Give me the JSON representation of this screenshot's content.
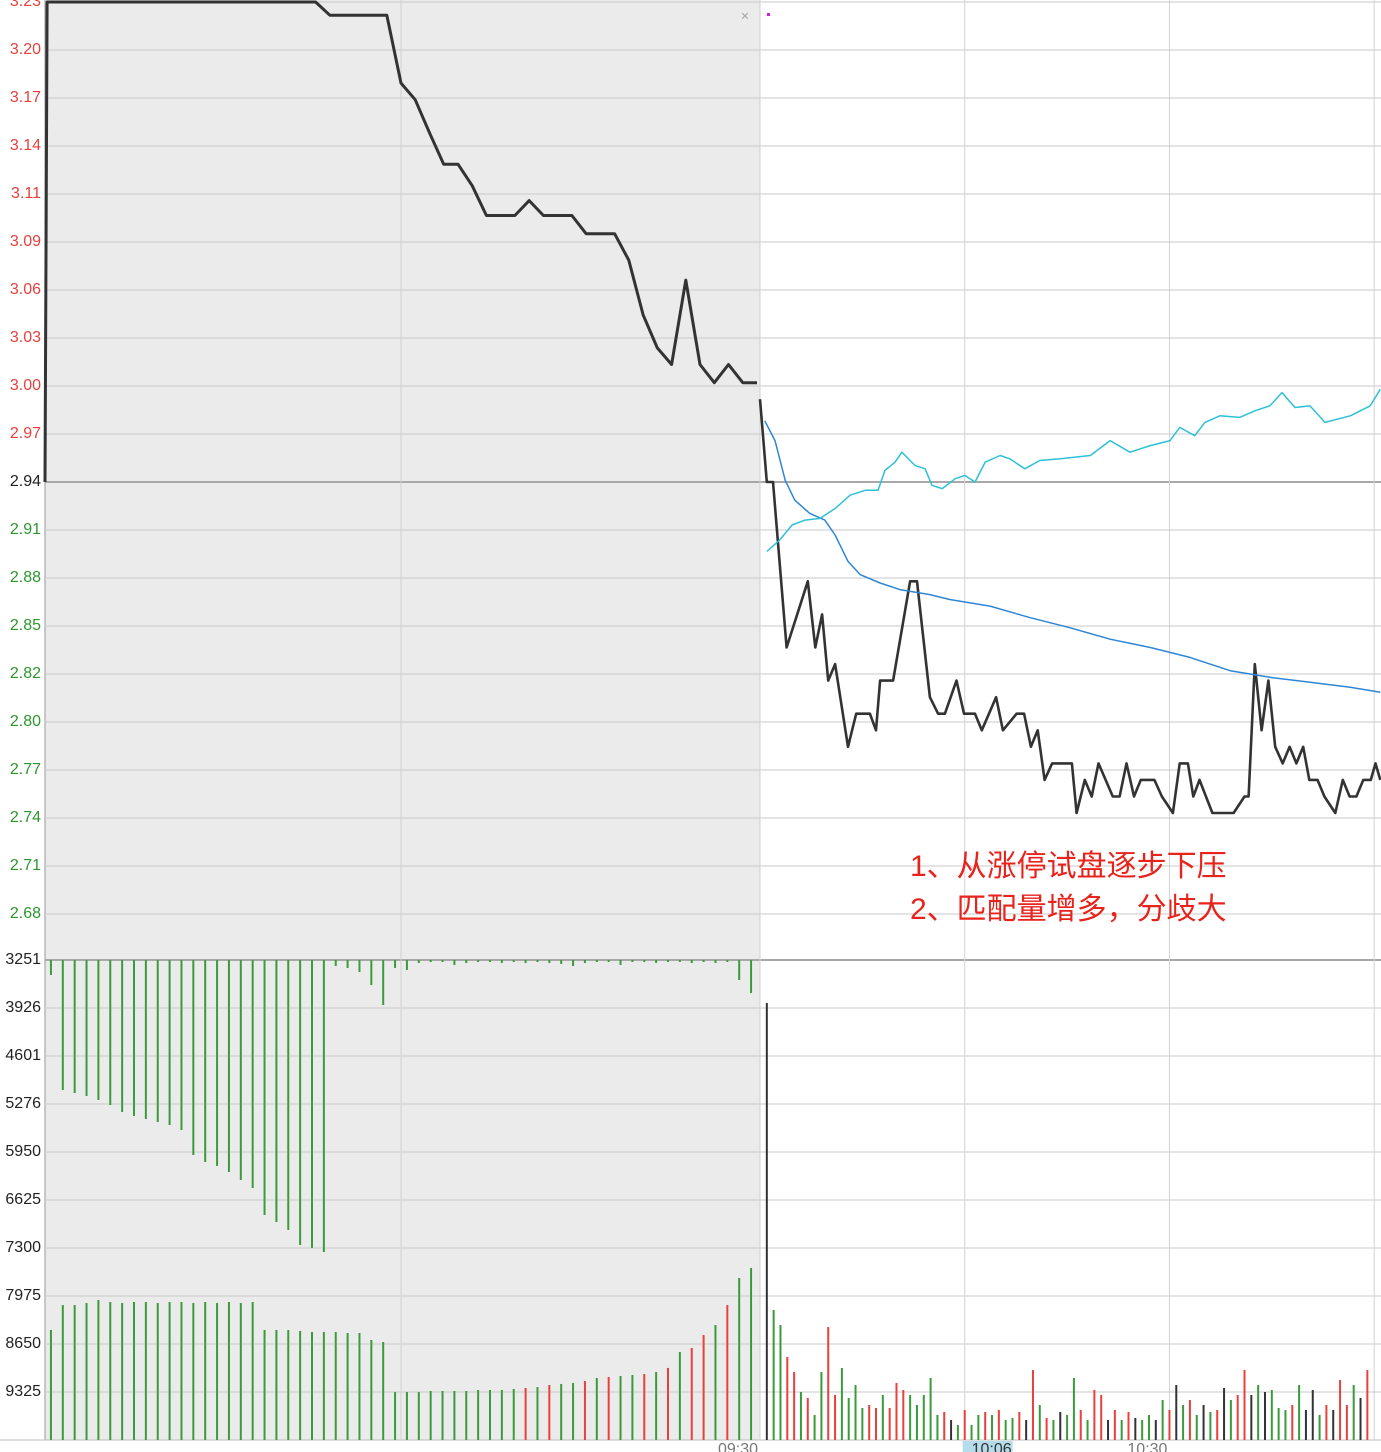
{
  "chart_data": {
    "type": "line",
    "prev_close": 2.94,
    "up_color": "#e8413c",
    "down_color": "#2e962e",
    "flat_color": "#222222",
    "grid": true,
    "ylim": [
      2.65,
      3.23
    ],
    "yticks": [
      3.23,
      {
        "value": 3.201,
        "label": "3.20"
      },
      {
        "value": 3.172,
        "label": "3.17"
      },
      {
        "value": 3.143,
        "label": "3.14"
      },
      {
        "value": 3.114,
        "label": "3.11"
      },
      {
        "value": 3.085,
        "label": "3.09"
      },
      {
        "value": 3.056,
        "label": "3.06"
      },
      {
        "value": 3.027,
        "label": "3.03"
      },
      {
        "value": 2.998,
        "label": "3.00"
      },
      {
        "value": 2.969,
        "label": "2.97"
      },
      2.94,
      {
        "value": 2.911,
        "label": "2.91"
      },
      {
        "value": 2.882,
        "label": "2.88"
      },
      {
        "value": 2.853,
        "label": "2.85"
      },
      {
        "value": 2.824,
        "label": "2.82"
      },
      {
        "value": 2.795,
        "label": "2.80"
      },
      {
        "value": 2.766,
        "label": "2.77"
      },
      {
        "value": 2.737,
        "label": "2.74"
      },
      {
        "value": 2.708,
        "label": "2.71"
      },
      {
        "value": 2.679,
        "label": "2.68"
      }
    ],
    "volume_ylim": [
      10000,
      3251
    ],
    "volume_yticks": [
      3251,
      3926,
      4601,
      5276,
      5950,
      6625,
      7300,
      7975,
      8650,
      9325
    ],
    "auction": {
      "xlim": [
        0,
        10
      ],
      "xgrid": [
        5
      ],
      "price": {
        "color": "#333333",
        "x": [
          0,
          0.03,
          0.2,
          0.4,
          0.6,
          0.8,
          1.0,
          1.2,
          1.4,
          1.6,
          1.8,
          2.0,
          2.2,
          2.4,
          2.6,
          2.8,
          3.0,
          3.2,
          3.4,
          3.6,
          3.8,
          4.0,
          4.2,
          4.4,
          4.6,
          4.8,
          5.0,
          5.2,
          5.4,
          5.6,
          5.8,
          6.0,
          6.2,
          6.4,
          6.6,
          6.8,
          7.0,
          7.2,
          7.4,
          7.6,
          7.8,
          8.0,
          8.2,
          8.4,
          8.6,
          8.8,
          9.0,
          9.2,
          9.4,
          9.6,
          9.8,
          10.0
        ],
        "values": [
          2.94,
          3.23,
          3.23,
          3.23,
          3.23,
          3.23,
          3.23,
          3.23,
          3.23,
          3.23,
          3.23,
          3.23,
          3.23,
          3.23,
          3.23,
          3.23,
          3.23,
          3.23,
          3.23,
          3.23,
          3.23,
          3.222,
          3.222,
          3.222,
          3.222,
          3.222,
          3.181,
          3.171,
          3.151,
          3.132,
          3.132,
          3.119,
          3.101,
          3.101,
          3.101,
          3.11,
          3.101,
          3.101,
          3.101,
          3.09,
          3.09,
          3.09,
          3.074,
          3.041,
          3.021,
          3.011,
          3.062,
          3.011,
          3.0,
          3.011,
          3.0,
          3.0
        ]
      },
      "unmatched": {
        "color": "#3b9b3b",
        "values": [
          3462,
          5079,
          5121,
          5163,
          5219,
          5290,
          5388,
          5444,
          5487,
          5529,
          5571,
          5641,
          5993,
          6091,
          6147,
          6232,
          6344,
          6457,
          6836,
          6935,
          7047,
          7258,
          7300,
          7357,
          3335,
          3363,
          3420,
          3603,
          3884,
          3363,
          3392,
          3293,
          3279,
          3279,
          3321,
          3293,
          3279,
          3279,
          3293,
          3279,
          3293,
          3279,
          3293,
          3307,
          3335,
          3293,
          3279,
          3279,
          3321,
          3279,
          3279,
          3293,
          3279,
          3279,
          3293,
          3279,
          3293,
          3279,
          3532,
          3715
        ]
      },
      "matched": {
        "values": [
          8453,
          8102,
          8102,
          8074,
          8031,
          8060,
          8074,
          8060,
          8060,
          8074,
          8060,
          8060,
          8074,
          8060,
          8074,
          8060,
          8074,
          8060,
          8453,
          8453,
          8453,
          8467,
          8481,
          8481,
          8481,
          8495,
          8495,
          8594,
          8622,
          9325,
          9325,
          9325,
          9311,
          9311,
          9311,
          9311,
          9297,
          9297,
          9297,
          9283,
          9269,
          9255,
          9227,
          9212,
          9198,
          9170,
          9128,
          9114,
          9100,
          9086,
          9072,
          9044,
          8987,
          8763,
          8706,
          8524,
          8383,
          8102,
          7722,
          7581
        ],
        "colors": [
          "#3b9b3b",
          "#3b9b3b",
          "#3b9b3b",
          "#3b9b3b",
          "#3b9b3b",
          "#3b9b3b",
          "#3b9b3b",
          "#3b9b3b",
          "#3b9b3b",
          "#3b9b3b",
          "#3b9b3b",
          "#3b9b3b",
          "#3b9b3b",
          "#3b9b3b",
          "#3b9b3b",
          "#3b9b3b",
          "#3b9b3b",
          "#3b9b3b",
          "#3b9b3b",
          "#3b9b3b",
          "#3b9b3b",
          "#3b9b3b",
          "#3b9b3b",
          "#3b9b3b",
          "#3b9b3b",
          "#3b9b3b",
          "#3b9b3b",
          "#3b9b3b",
          "#3b9b3b",
          "#3b9b3b",
          "#3b9b3b",
          "#3b9b3b",
          "#3b9b3b",
          "#3b9b3b",
          "#3b9b3b",
          "#3b9b3b",
          "#3b9b3b",
          "#3b9b3b",
          "#3b9b3b",
          "#3b9b3b",
          "#e8413c",
          "#3b9b3b",
          "#e8413c",
          "#3b9b3b",
          "#3b9b3b",
          "#e8413c",
          "#3b9b3b",
          "#e8413c",
          "#3b9b3b",
          "#3b9b3b",
          "#e8413c",
          "#3b9b3b",
          "#e8413c",
          "#3b9b3b",
          "#e8413c",
          "#e8413c",
          "#3b9b3b",
          "#e8413c",
          "#3b9b3b",
          "#3b9b3b"
        ]
      }
    },
    "trading": {
      "xlim": [
        0,
        91
      ],
      "xgrid": [
        0,
        30,
        60,
        90
      ],
      "xticks": [
        {
          "value": 0,
          "label": "09:30"
        },
        {
          "value": 60,
          "label": "10:30"
        }
      ],
      "cursor": {
        "value": 36,
        "label": "10:06"
      },
      "series": [
        {
          "color": "#333333",
          "width": 2.6,
          "x": [
            0,
            1,
            1.9,
            3.9,
            7,
            8.1,
            9.1,
            10,
            11,
            12.9,
            14.1,
            16.1,
            17,
            17.6,
            19.5,
            22,
            23,
            24.9,
            26.1,
            27.1,
            28.8,
            29.9,
            31.5,
            32.5,
            34.6,
            35.6,
            37.6,
            38.7,
            39.7,
            40.7,
            41.7,
            42.8,
            45.7,
            46.4,
            47.6,
            48.6,
            49.6,
            51.7,
            52.7,
            53.7,
            54.8,
            55.8,
            57.8,
            58.9,
            60.5,
            61.5,
            62.7,
            63.5,
            64.4,
            66.3,
            69.4,
            71,
            71.6,
            72.5,
            73.5,
            74.5,
            75.5,
            76.6,
            77.6,
            78.6,
            79.6,
            80.5,
            81.7,
            82.7,
            84.3,
            85.4,
            86.4,
            87.4,
            88.4,
            89.5,
            90.2,
            90.9
          ],
          "values": [
            2.99,
            2.94,
            2.94,
            2.84,
            2.88,
            2.84,
            2.86,
            2.82,
            2.83,
            2.78,
            2.8,
            2.8,
            2.79,
            2.82,
            2.82,
            2.88,
            2.88,
            2.81,
            2.8,
            2.8,
            2.82,
            2.8,
            2.8,
            2.79,
            2.81,
            2.79,
            2.8,
            2.8,
            2.78,
            2.79,
            2.76,
            2.77,
            2.77,
            2.74,
            2.76,
            2.75,
            2.77,
            2.75,
            2.75,
            2.77,
            2.75,
            2.76,
            2.76,
            2.75,
            2.74,
            2.77,
            2.77,
            2.75,
            2.76,
            2.74,
            2.74,
            2.75,
            2.75,
            2.83,
            2.79,
            2.82,
            2.78,
            2.77,
            2.78,
            2.77,
            2.78,
            2.76,
            2.76,
            2.75,
            2.74,
            2.76,
            2.75,
            2.75,
            2.76,
            2.76,
            2.77,
            2.76
          ]
        },
        {
          "color": "#2f86d6",
          "width": 1.5,
          "x": [
            0.7,
            2.2,
            3.7,
            5.1,
            7.3,
            9.5,
            11,
            12.9,
            14.7,
            17.6,
            20.5,
            24.9,
            27.8,
            33.7,
            39.6,
            45.4,
            51.3,
            57.2,
            63,
            68.9,
            74.7,
            80.6,
            86.5,
            90.9
          ],
          "values": [
            2.977,
            2.965,
            2.941,
            2.929,
            2.921,
            2.917,
            2.908,
            2.892,
            2.884,
            2.879,
            2.875,
            2.872,
            2.869,
            2.865,
            2.858,
            2.852,
            2.845,
            2.84,
            2.834,
            2.826,
            2.822,
            2.819,
            2.816,
            2.813
          ]
        },
        {
          "color": "#2ec0d6",
          "width": 1.5,
          "x": [
            1,
            2.9,
            4.7,
            6.6,
            8.8,
            11,
            13.2,
            15.4,
            17.3,
            18.3,
            19.8,
            20.8,
            22.7,
            24.2,
            25.2,
            26.7,
            28.6,
            30,
            31.5,
            33,
            35.2,
            36.6,
            38.8,
            41,
            44,
            48.4,
            51.3,
            54.2,
            57.2,
            60.1,
            61.5,
            63.7,
            65.2,
            67.4,
            70.3,
            72.5,
            74.7,
            76.5,
            78.4,
            80.6,
            82.8,
            86.5,
            89.4,
            90.9
          ],
          "values": [
            2.898,
            2.905,
            2.914,
            2.917,
            2.918,
            2.924,
            2.932,
            2.935,
            2.935,
            2.947,
            2.952,
            2.958,
            2.95,
            2.948,
            2.938,
            2.936,
            2.942,
            2.944,
            2.94,
            2.952,
            2.956,
            2.954,
            2.948,
            2.953,
            2.954,
            2.956,
            2.965,
            2.958,
            2.962,
            2.965,
            2.973,
            2.968,
            2.976,
            2.98,
            2.979,
            2.983,
            2.986,
            2.994,
            2.985,
            2.986,
            2.976,
            2.98,
            2.986,
            2.996
          ]
        }
      ],
      "volume": {
        "x": [
          1,
          2,
          3,
          4,
          5,
          6,
          7,
          8,
          9,
          10,
          11,
          12,
          13,
          14,
          15,
          16,
          17,
          18,
          19,
          20,
          21,
          22,
          23,
          24,
          25,
          26,
          27,
          28,
          29,
          30,
          31,
          32,
          33,
          34,
          35,
          36,
          37,
          38,
          39,
          40,
          41,
          42,
          43,
          44,
          45,
          46,
          47,
          48,
          49,
          50,
          51,
          52,
          53,
          54,
          55,
          56,
          57,
          58,
          59,
          60,
          61,
          62,
          63,
          64,
          65,
          66,
          67,
          68,
          69,
          70,
          71,
          72,
          73,
          74,
          75,
          76,
          77,
          78,
          79,
          80,
          81,
          82,
          83,
          84,
          85,
          86,
          87,
          88,
          89
        ],
        "values": [
          3856,
          8172,
          8383,
          8833,
          9044,
          9325,
          9409,
          9648,
          9044,
          8411,
          9367,
          8987,
          9409,
          9227,
          9550,
          9508,
          9550,
          9367,
          9550,
          9198,
          9297,
          9367,
          9508,
          9367,
          9128,
          9648,
          9606,
          9719,
          9789,
          9578,
          9789,
          9648,
          9606,
          9648,
          9578,
          9719,
          9690,
          9606,
          9719,
          9016,
          9508,
          9690,
          9719,
          9606,
          9648,
          9128,
          9578,
          9719,
          9297,
          9367,
          9719,
          9578,
          9719,
          9606,
          9690,
          9719,
          9648,
          9719,
          9437,
          9578,
          9227,
          9508,
          9437,
          9648,
          9508,
          9606,
          9578,
          9269,
          9437,
          9367,
          9016,
          9367,
          9227,
          9325,
          9297,
          9550,
          9578,
          9508,
          9227,
          9578,
          9297,
          9648,
          9508,
          9578,
          9156,
          9508,
          9227,
          9409,
          9016
        ],
        "colors": [
          "#333333",
          "#3b9b3b",
          "#3b9b3b",
          "#e8413c",
          "#e8413c",
          "#3b9b3b",
          "#e8413c",
          "#3b9b3b",
          "#3b9b3b",
          "#e8413c",
          "#e8413c",
          "#3b9b3b",
          "#3b9b3b",
          "#3b9b3b",
          "#3b9b3b",
          "#e8413c",
          "#e8413c",
          "#3b9b3b",
          "#e8413c",
          "#e8413c",
          "#e8413c",
          "#3b9b3b",
          "#3b9b3b",
          "#3b9b3b",
          "#3b9b3b",
          "#3b9b3b",
          "#e8413c",
          "#333333",
          "#3b9b3b",
          "#e8413c",
          "#3b9b3b",
          "#3b9b3b",
          "#e8413c",
          "#3b9b3b",
          "#e8413c",
          "#3b9b3b",
          "#3b9b3b",
          "#e8413c",
          "#333333",
          "#e8413c",
          "#3b9b3b",
          "#e8413c",
          "#3b9b3b",
          "#333333",
          "#3b9b3b",
          "#3b9b3b",
          "#e8413c",
          "#3b9b3b",
          "#e8413c",
          "#e8413c",
          "#333333",
          "#e8413c",
          "#3b9b3b",
          "#e8413c",
          "#333333",
          "#3b9b3b",
          "#3b9b3b",
          "#333333",
          "#3b9b3b",
          "#e8413c",
          "#333333",
          "#3b9b3b",
          "#e8413c",
          "#3b9b3b",
          "#333333",
          "#3b9b3b",
          "#e8413c",
          "#333333",
          "#3b9b3b",
          "#e8413c",
          "#e8413c",
          "#333333",
          "#3b9b3b",
          "#333333",
          "#3b9b3b",
          "#3b9b3b",
          "#3b9b3b",
          "#e8413c",
          "#3b9b3b",
          "#333333",
          "#333333",
          "#3b9b3b",
          "#e8413c",
          "#333333",
          "#e8413c",
          "#e8413c",
          "#3b9b3b",
          "#333333",
          "#e8413c"
        ]
      }
    },
    "annotations": [
      "1、从涨停试盘逐步下压",
      "2、匹配量增多，分歧大"
    ]
  }
}
